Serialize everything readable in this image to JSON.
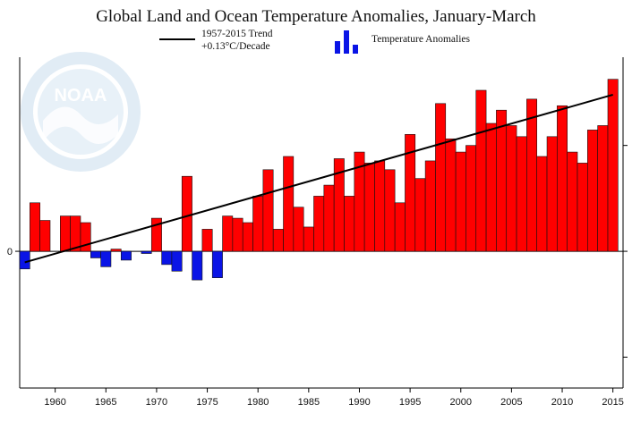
{
  "colors": {
    "positive": "#ff0000",
    "negative": "#0a14e6",
    "bar_edge": "#111111",
    "trend": "#000000",
    "logo": "#c9dcec"
  },
  "logo": {
    "text": "NOAA",
    "ring_text": "NATIONAL OCEANIC AND ATMOSPHERIC ADMINISTRATION · U.S. DEPARTMENT OF COMMERCE"
  },
  "chart_data": {
    "type": "bar",
    "title": "Global Land and Ocean Temperature Anomalies, January-March",
    "legend": [
      {
        "name": "trend",
        "label_lines": [
          "1957-2015 Trend",
          "+0.13°C/Decade"
        ]
      },
      {
        "name": "anomalies",
        "label": "Temperature Anomalies"
      }
    ],
    "x": [
      1957,
      1958,
      1959,
      1960,
      1961,
      1962,
      1963,
      1964,
      1965,
      1966,
      1967,
      1968,
      1969,
      1970,
      1971,
      1972,
      1973,
      1974,
      1975,
      1976,
      1977,
      1978,
      1979,
      1980,
      1981,
      1982,
      1983,
      1984,
      1985,
      1986,
      1987,
      1988,
      1989,
      1990,
      1991,
      1992,
      1993,
      1994,
      1995,
      1996,
      1997,
      1998,
      1999,
      2000,
      2001,
      2002,
      2003,
      2004,
      2005,
      2006,
      2007,
      2008,
      2009,
      2010,
      2011,
      2012,
      2013,
      2014,
      2015
    ],
    "values": [
      -0.08,
      0.22,
      0.14,
      0.0,
      0.16,
      0.16,
      0.13,
      -0.03,
      -0.07,
      0.01,
      -0.04,
      0.0,
      -0.01,
      0.15,
      -0.06,
      -0.09,
      0.34,
      -0.13,
      0.1,
      -0.12,
      0.16,
      0.15,
      0.13,
      0.25,
      0.37,
      0.1,
      0.43,
      0.2,
      0.11,
      0.25,
      0.3,
      0.42,
      0.25,
      0.45,
      0.4,
      0.41,
      0.37,
      0.22,
      0.53,
      0.33,
      0.41,
      0.67,
      0.51,
      0.45,
      0.48,
      0.73,
      0.58,
      0.64,
      0.57,
      0.52,
      0.69,
      0.43,
      0.52,
      0.66,
      0.45,
      0.4,
      0.55,
      0.57,
      0.78
    ],
    "trend": {
      "start": [
        1957,
        -0.05
      ],
      "end": [
        2015,
        0.71
      ],
      "rate_label": "+0.13°C/Decade"
    },
    "x_ticks": [
      1960,
      1965,
      1970,
      1975,
      1980,
      1985,
      1990,
      1995,
      2000,
      2005,
      2010,
      2015
    ],
    "y_ticks": [
      {
        "value": 0,
        "label": "0"
      }
    ],
    "xlim": [
      1956.5,
      2016
    ],
    "ylim": [
      -0.62,
      0.88
    ],
    "xlabel": "",
    "ylabel": ""
  }
}
